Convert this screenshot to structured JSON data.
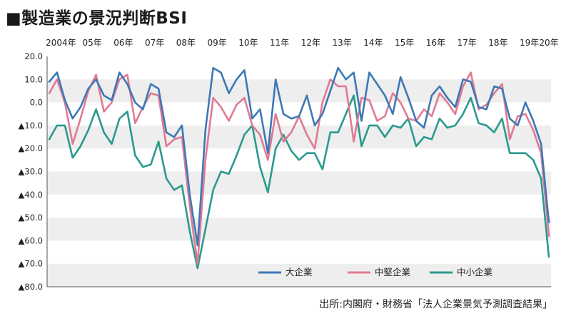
{
  "title": "■製造業の景況判断BSI",
  "source": "出所:内閣府・財務省「法人企業景気予測調査結果」",
  "colors": {
    "band": "#eeeeee",
    "axis": "#555555",
    "grid": "#ffffff"
  },
  "chart_data": {
    "type": "line",
    "title": "■製造業の景況判断BSI",
    "xlabel": "",
    "ylabel": "",
    "ylim": [
      -80,
      20
    ],
    "ytick_values": [
      20,
      10,
      0,
      -10,
      -20,
      -30,
      -40,
      -50,
      -60,
      -70,
      -80
    ],
    "ytick_labels": [
      "20.0",
      "10.0",
      "0.0",
      "▲10.0",
      "▲20.0",
      "▲30.0",
      "▲40.0",
      "▲50.0",
      "▲60.0",
      "▲70.0",
      "▲80.0"
    ],
    "xtick_labels": [
      "2004年",
      "05年",
      "06年",
      "07年",
      "08年",
      "09年",
      "10年",
      "11年",
      "12年",
      "13年",
      "14年",
      "15年",
      "16年",
      "17年",
      "18年",
      "19年",
      "20年"
    ],
    "x_start_year": 2004,
    "quarters_per_year": 4,
    "grid": true,
    "legend_position": "bottom-right",
    "series": [
      {
        "name": "大企業",
        "color": "#3d78b6",
        "values": [
          9,
          13,
          1,
          -7,
          -2,
          6,
          10,
          3,
          1,
          13,
          8,
          0,
          -3,
          8,
          6,
          -13,
          -15,
          -10,
          -40,
          -62,
          -12,
          15,
          13,
          4,
          10,
          14,
          -7,
          -3,
          -22,
          10,
          -5,
          -7,
          -6,
          3,
          -10,
          -5,
          5,
          15,
          10,
          13,
          -8,
          13,
          8,
          3,
          -5,
          11,
          2,
          -8,
          -11,
          3,
          7,
          2,
          -2,
          10,
          9,
          -2,
          -3,
          7,
          6,
          -7,
          -10,
          0,
          -8,
          -18,
          -52
        ]
      },
      {
        "name": "中堅企業",
        "color": "#e07a92",
        "values": [
          4,
          10,
          0,
          -18,
          -7,
          5,
          12,
          -4,
          0,
          10,
          12,
          -9,
          -2,
          4,
          3,
          -19,
          -16,
          -15,
          -45,
          -70,
          -25,
          2,
          -2,
          -8,
          -1,
          2,
          -10,
          -14,
          -25,
          -5,
          -17,
          -13,
          -6,
          -14,
          -20,
          0,
          10,
          7,
          7,
          -17,
          2,
          1,
          -8,
          -6,
          4,
          0,
          -7,
          -8,
          -3,
          -6,
          4,
          0,
          -5,
          7,
          13,
          -3,
          -1,
          4,
          8,
          -16,
          -6,
          -5,
          -12,
          -22,
          -58
        ]
      },
      {
        "name": "中小企業",
        "color": "#2a9a8e",
        "values": [
          -16,
          -10,
          -10,
          -24,
          -19,
          -12,
          -3,
          -13,
          -18,
          -7,
          -4,
          -23,
          -28,
          -27,
          -17,
          -33,
          -38,
          -36,
          -56,
          -72,
          -55,
          -38,
          -30,
          -31,
          -23,
          -14,
          -10,
          -28,
          -39,
          -20,
          -14,
          -21,
          -25,
          -22,
          -22,
          -29,
          -13,
          -13,
          -5,
          3,
          -19,
          -10,
          -10,
          -15,
          -10,
          -11,
          -7,
          -19,
          -15,
          -16,
          -7,
          -11,
          -10,
          -5,
          2,
          -9,
          -10,
          -13,
          -7,
          -22,
          -22,
          -22,
          -25,
          -33,
          -67
        ]
      }
    ]
  }
}
